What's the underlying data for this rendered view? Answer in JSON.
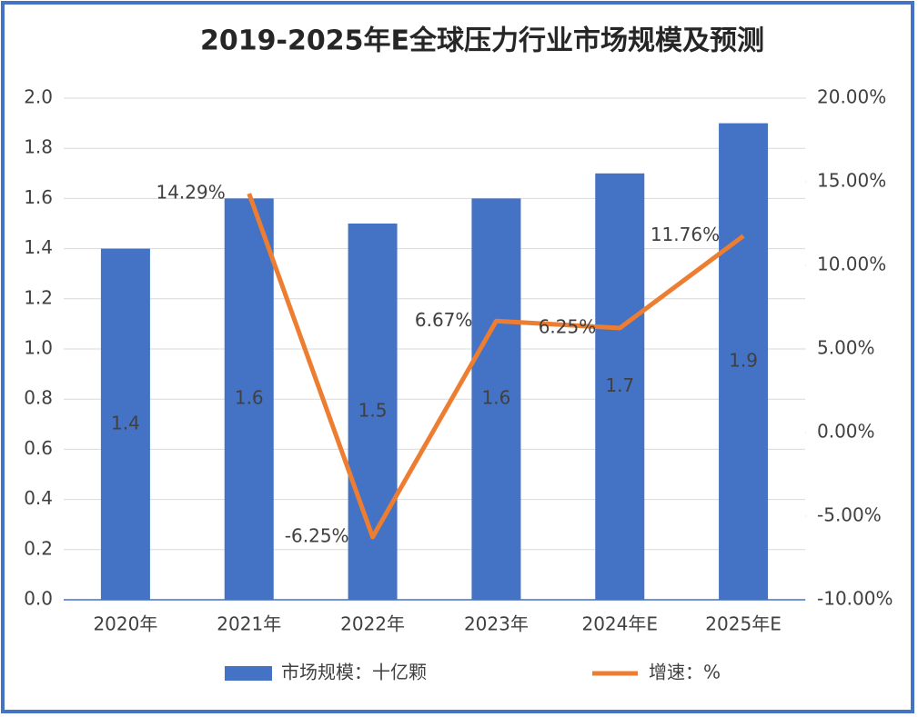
{
  "chart_data": {
    "type": "bar",
    "title": "2019-2025年E全球压力行业市场规模及预测",
    "categories": [
      "2020年",
      "2021年",
      "2022年",
      "2023年",
      "2024年E",
      "2025年E"
    ],
    "series": [
      {
        "name": "市场规模：十亿颗",
        "color": "#4472c4",
        "values": [
          1.4,
          1.6,
          1.5,
          1.6,
          1.7,
          1.9
        ]
      },
      {
        "name": "增速：%",
        "type": "line",
        "axis": "y2",
        "color": "#ed7d31",
        "values": [
          null,
          14.29,
          -6.25,
          6.67,
          6.25,
          11.76
        ],
        "value_labels": [
          null,
          "14.29%",
          "-6.25%",
          "6.67%",
          "6.25%",
          "11.76%"
        ]
      }
    ],
    "ylim": [
      0,
      2
    ],
    "yticks": [
      {
        "value": 0,
        "label": "0.0"
      },
      0.2,
      0.4,
      0.6,
      0.8,
      {
        "value": 1,
        "label": "1.0"
      },
      1.2,
      1.4,
      1.6,
      1.8,
      {
        "value": 2,
        "label": "2.0"
      }
    ],
    "y2lim": [
      -10,
      20
    ],
    "y2ticks": [
      {
        "value": -10,
        "label": "-10.00%"
      },
      {
        "value": -5,
        "label": "-5.00%"
      },
      {
        "value": 0,
        "label": "0.00%"
      },
      {
        "value": 5,
        "label": "5.00%"
      },
      {
        "value": 10,
        "label": "10.00%"
      },
      {
        "value": 15,
        "label": "15.00%"
      },
      {
        "value": 20,
        "label": "20.00%"
      }
    ],
    "grid": true,
    "legend": "bottom"
  }
}
